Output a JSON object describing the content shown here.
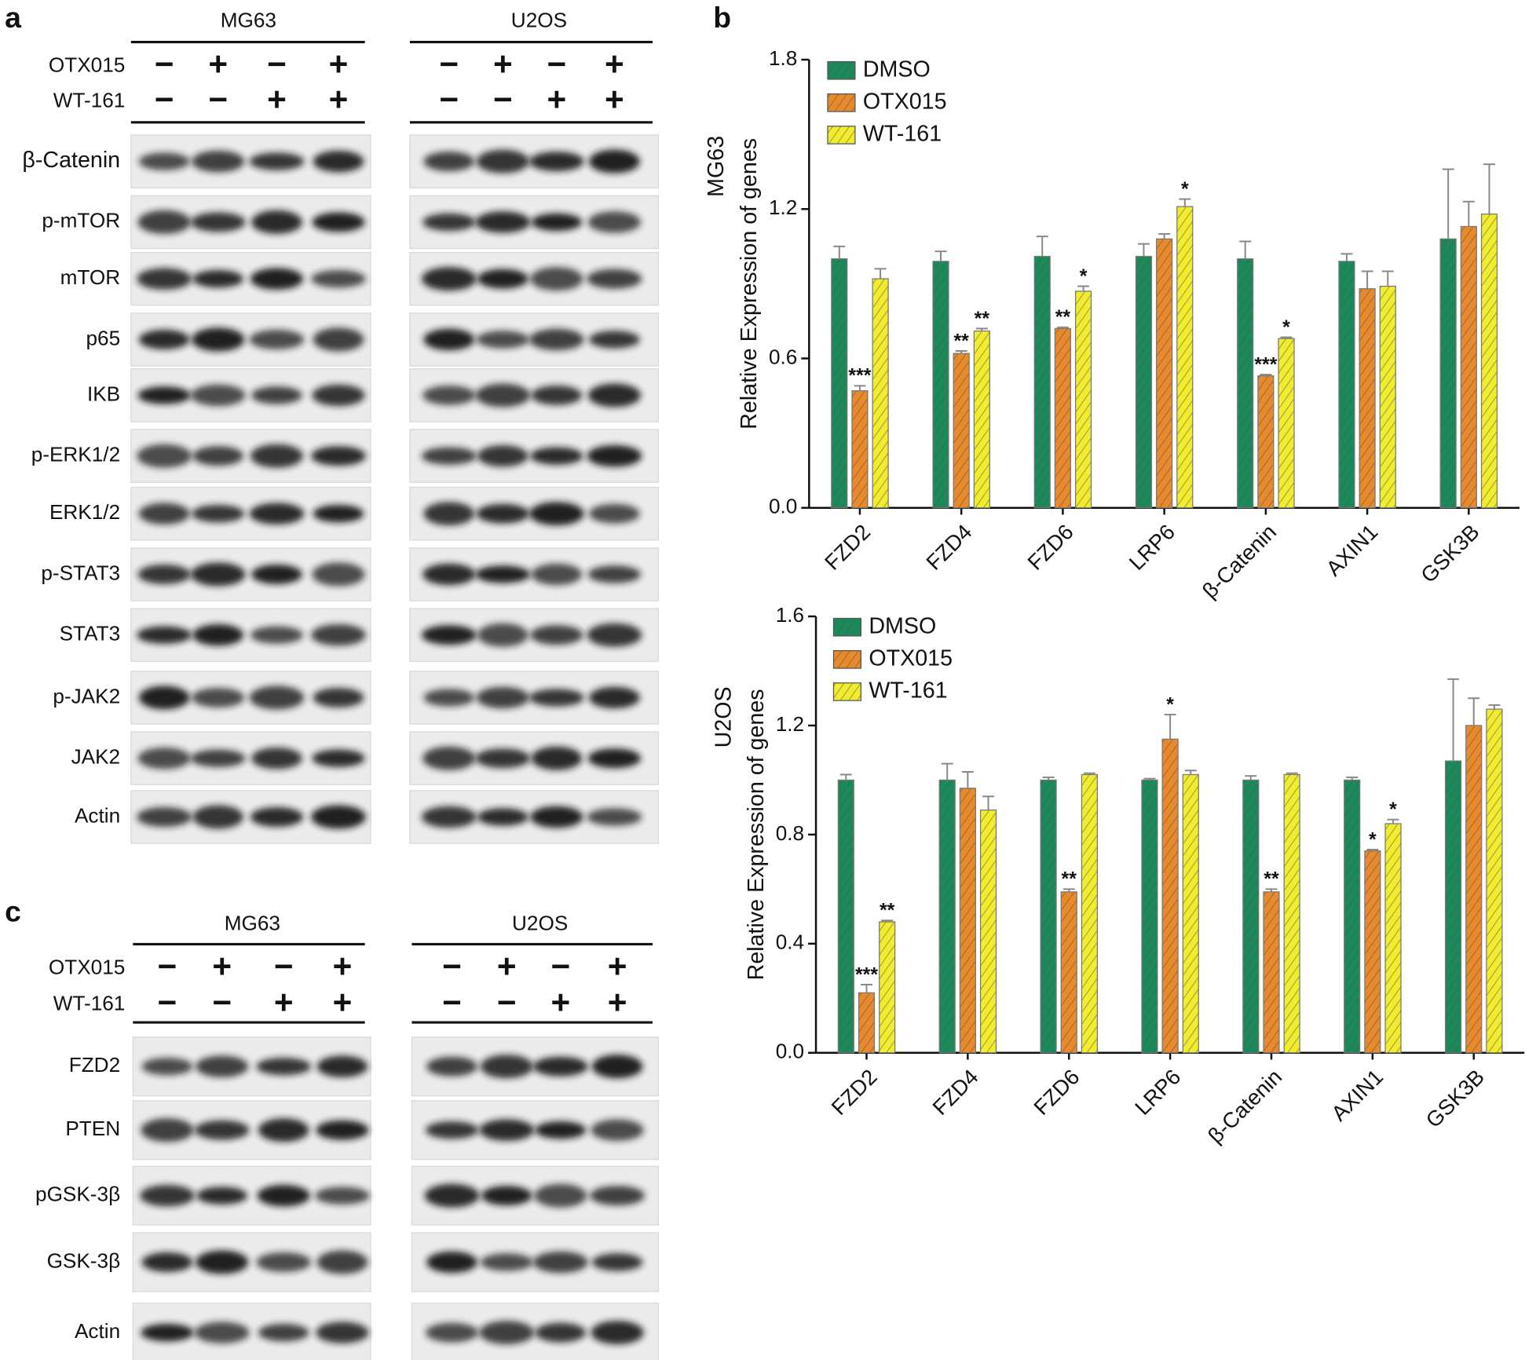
{
  "figure": {
    "letters": [
      "a",
      "b",
      "c"
    ]
  },
  "blots": [
    {
      "treatments": [
        "OTX015",
        "WT-161"
      ],
      "groups": [
        {
          "cell_line": "MG63",
          "signs": [
            [
              "−",
              "+",
              "−",
              "+"
            ],
            [
              "−",
              "−",
              "+",
              "+"
            ]
          ]
        },
        {
          "cell_line": "U2OS",
          "signs": [
            [
              "−",
              "+",
              "−",
              "+"
            ],
            [
              "−",
              "−",
              "+",
              "+"
            ]
          ]
        }
      ],
      "proteins": [
        "β-Catenin",
        "p-mTOR",
        "mTOR",
        "p65",
        "IKB",
        "p-ERK1/2",
        "ERK1/2",
        "p-STAT3",
        "STAT3",
        "p-JAK2",
        "JAK2",
        "Actin"
      ]
    },
    {
      "treatments": [
        "OTX015",
        "WT-161"
      ],
      "groups": [
        {
          "cell_line": "MG63",
          "signs": [
            [
              "−",
              "+",
              "−",
              "+"
            ],
            [
              "−",
              "−",
              "+",
              "+"
            ]
          ]
        },
        {
          "cell_line": "U2OS",
          "signs": [
            [
              "−",
              "+",
              "−",
              "+"
            ],
            [
              "−",
              "−",
              "+",
              "+"
            ]
          ]
        }
      ],
      "proteins": [
        "FZD2",
        "PTEN",
        "pGSK-3β",
        "GSK-3β",
        "Actin"
      ]
    }
  ],
  "chart_data": [
    {
      "type": "bar",
      "row_label": "MG63",
      "y_label": "Relative Expression of genes",
      "categories": [
        "FZD2",
        "FZD4",
        "FZD6",
        "LRP6",
        "β-Catenin",
        "AXIN1",
        "GSK3B"
      ],
      "series": [
        {
          "name": "DMSO",
          "color": "#1b8a5a",
          "values": [
            1.0,
            0.99,
            1.01,
            1.01,
            1.0,
            0.99,
            1.08
          ],
          "errors": [
            0.05,
            0.04,
            0.08,
            0.05,
            0.07,
            0.03,
            0.28
          ],
          "significance": [
            null,
            null,
            null,
            null,
            null,
            null,
            null
          ]
        },
        {
          "name": "OTX015",
          "color": "#e8892b",
          "values": [
            0.47,
            0.62,
            0.72,
            1.08,
            0.53,
            0.88,
            1.13
          ],
          "errors": [
            0.02,
            0.01,
            0.005,
            0.02,
            0.005,
            0.07,
            0.1
          ],
          "significance": [
            "***",
            "**",
            "**",
            null,
            "***",
            null,
            null
          ]
        },
        {
          "name": "WT-161",
          "color": "#f2ec2e",
          "values": [
            0.92,
            0.71,
            0.87,
            1.21,
            0.68,
            0.89,
            1.18
          ],
          "errors": [
            0.04,
            0.01,
            0.02,
            0.03,
            0.005,
            0.06,
            0.2
          ],
          "significance": [
            null,
            "**",
            "*",
            "*",
            "*",
            null,
            null
          ]
        }
      ],
      "ylim": [
        0,
        1.8
      ],
      "yticks": [
        {
          "value": 0,
          "label": "0.0"
        },
        0.6,
        1.2,
        1.8
      ],
      "legend": "upper left"
    },
    {
      "type": "bar",
      "row_label": "U2OS",
      "y_label": "Relative Expression of genes",
      "categories": [
        "FZD2",
        "FZD4",
        "FZD6",
        "LRP6",
        "β-Catenin",
        "AXIN1",
        "GSK3B"
      ],
      "series": [
        {
          "name": "DMSO",
          "color": "#1b8a5a",
          "values": [
            1.0,
            1.0,
            1.0,
            1.0,
            1.0,
            1.0,
            1.07
          ],
          "errors": [
            0.02,
            0.06,
            0.01,
            0.005,
            0.015,
            0.01,
            0.3
          ],
          "significance": [
            null,
            null,
            null,
            null,
            null,
            null,
            null
          ]
        },
        {
          "name": "OTX015",
          "color": "#e8892b",
          "values": [
            0.22,
            0.97,
            0.59,
            1.15,
            0.59,
            0.74,
            1.2
          ],
          "errors": [
            0.03,
            0.06,
            0.01,
            0.09,
            0.01,
            0.005,
            0.1
          ],
          "significance": [
            "***",
            null,
            "**",
            "*",
            "**",
            "*",
            null
          ]
        },
        {
          "name": "WT-161",
          "color": "#f2ec2e",
          "values": [
            0.48,
            0.89,
            1.02,
            1.02,
            1.02,
            0.84,
            1.26
          ],
          "errors": [
            0.005,
            0.05,
            0.005,
            0.015,
            0.005,
            0.015,
            0.015
          ],
          "significance": [
            "**",
            null,
            null,
            null,
            null,
            "*",
            null
          ]
        }
      ],
      "ylim": [
        0,
        1.6
      ],
      "yticks": [
        {
          "value": 0,
          "label": "0.0"
        },
        0.4,
        0.8,
        1.2,
        1.6
      ],
      "legend": "upper left"
    }
  ]
}
